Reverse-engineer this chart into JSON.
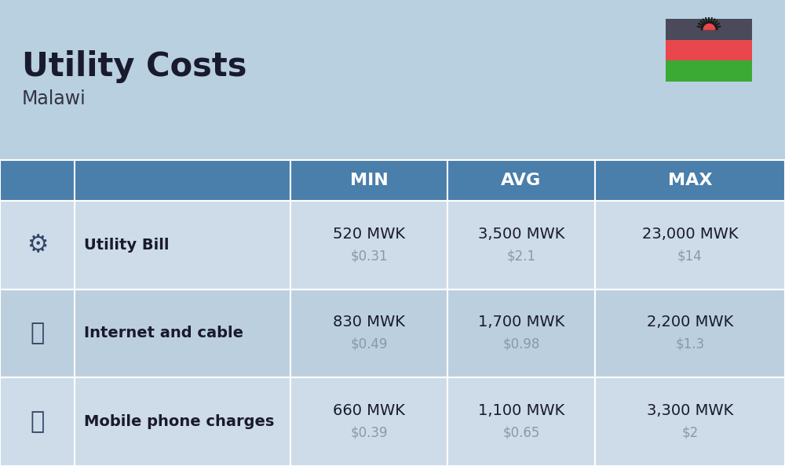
{
  "title": "Utility Costs",
  "subtitle": "Malawi",
  "background_color": "#b8d0e0",
  "header_bg_color": "#4a7eab",
  "header_text_color": "#ffffff",
  "row_bg_color_even": "#cddce8",
  "row_bg_color_odd": "#bccfde",
  "col_headers": [
    "MIN",
    "AVG",
    "MAX"
  ],
  "rows": [
    {
      "label": "Utility Bill",
      "min_mwk": "520 MWK",
      "min_usd": "$0.31",
      "avg_mwk": "3,500 MWK",
      "avg_usd": "$2.1",
      "max_mwk": "23,000 MWK",
      "max_usd": "$14"
    },
    {
      "label": "Internet and cable",
      "min_mwk": "830 MWK",
      "min_usd": "$0.49",
      "avg_mwk": "1,700 MWK",
      "avg_usd": "$0.98",
      "max_mwk": "2,200 MWK",
      "max_usd": "$1.3"
    },
    {
      "label": "Mobile phone charges",
      "min_mwk": "660 MWK",
      "min_usd": "$0.39",
      "avg_mwk": "1,100 MWK",
      "avg_usd": "$0.65",
      "max_mwk": "3,300 MWK",
      "max_usd": "$2"
    }
  ],
  "flag_colors": [
    "#4a4a5a",
    "#e8474c",
    "#3aaa35"
  ],
  "flag_sun_color": "#e8474c",
  "label_color": "#1a1a2e",
  "usd_color": "#8899aa",
  "mwk_color": "#1a1a2e",
  "title_color": "#1a1a2e",
  "subtitle_color": "#333344"
}
